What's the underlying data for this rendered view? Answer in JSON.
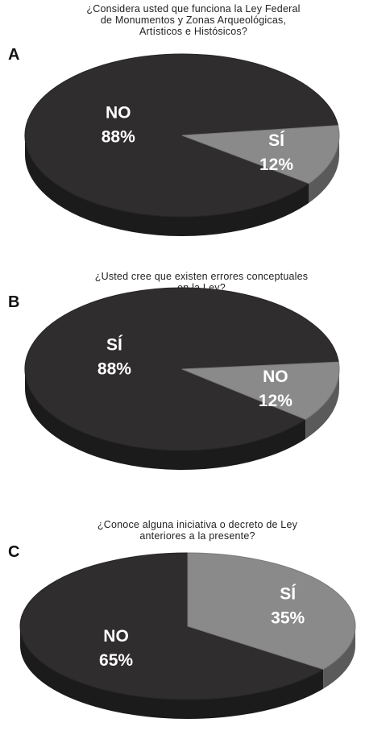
{
  "colors": {
    "no_slice": "#2f2d2e",
    "no_side": "#1c1b1c",
    "si_slice": "#8a8a8a",
    "si_side": "#5a5a5a",
    "label": "#ffffff"
  },
  "chart_data": [
    {
      "type": "pie",
      "panel": "A",
      "title_lines": [
        "¿Considera usted que funciona la Ley Federal",
        "de Monumentos y Zonas Arqueológicas,",
        "Artísticos e Histósicos?"
      ],
      "slices": [
        {
          "label": "NO",
          "value": 88,
          "value_text": "88%"
        },
        {
          "label": "SÍ",
          "value": 12,
          "value_text": "12%"
        }
      ]
    },
    {
      "type": "pie",
      "panel": "B",
      "title_lines": [
        "¿Usted cree que existen errores conceptuales",
        "en la Ley?"
      ],
      "slices": [
        {
          "label": "SÍ",
          "value": 88,
          "value_text": "88%"
        },
        {
          "label": "NO",
          "value": 12,
          "value_text": "12%"
        }
      ]
    },
    {
      "type": "pie",
      "panel": "C",
      "title_lines": [
        "¿Conoce alguna iniciativa o decreto de Ley",
        "anteriores a la presente?"
      ],
      "slices": [
        {
          "label": "NO",
          "value": 65,
          "value_text": "65%"
        },
        {
          "label": "SÍ",
          "value": 35,
          "value_text": "35%"
        }
      ]
    }
  ]
}
